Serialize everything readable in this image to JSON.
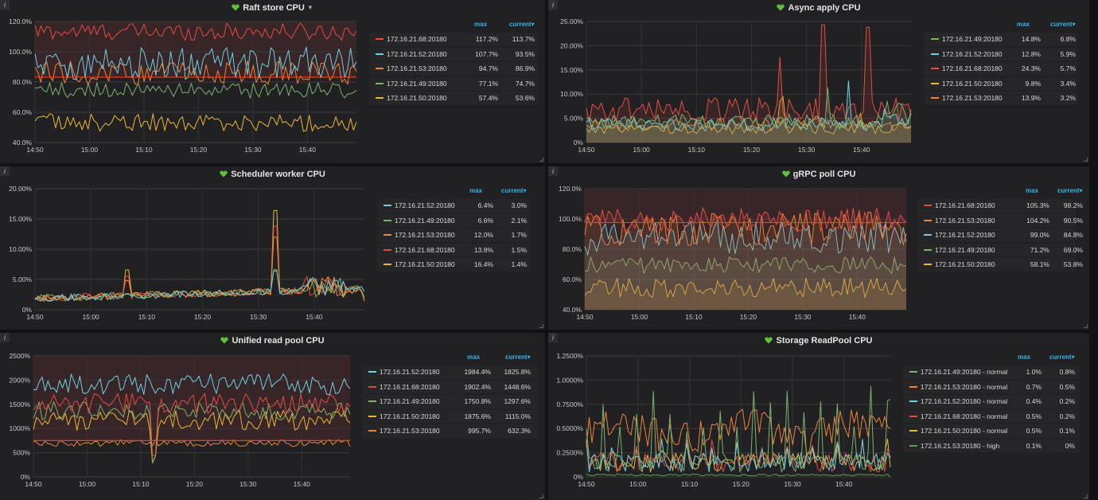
{
  "legend_headers": {
    "max": "max",
    "current": "current",
    "sort_icon": "caret-down-icon"
  },
  "panels": [
    {
      "title": "Raft store CPU",
      "has_dropdown": true,
      "y_ticks": [
        "120.0%",
        "100.0%",
        "80.0%",
        "60.0%",
        "40.0%"
      ],
      "x_ticks": [
        "14:50",
        "15:00",
        "15:10",
        "15:20",
        "15:30",
        "15:40"
      ],
      "threshold_label_value": 85,
      "series": [
        {
          "name": "172.16.21.68:20180",
          "max": "117.2%",
          "current": "113.7%",
          "color": "#e24d42"
        },
        {
          "name": "172.16.21.52:20180",
          "max": "107.7%",
          "current": "93.5%",
          "color": "#6ed0e0"
        },
        {
          "name": "172.16.21.53:20180",
          "max": "94.7%",
          "current": "86.9%",
          "color": "#ef843c"
        },
        {
          "name": "172.16.21.49:20180",
          "max": "77.1%",
          "current": "74.7%",
          "color": "#7eb26d"
        },
        {
          "name": "172.16.21.50:20180",
          "max": "57.4%",
          "current": "53.6%",
          "color": "#eab839"
        }
      ]
    },
    {
      "title": "Async apply CPU",
      "has_dropdown": false,
      "y_ticks": [
        "25.00%",
        "20.00%",
        "15.00%",
        "10.00%",
        "5.00%",
        "0%"
      ],
      "x_ticks": [
        "14:50",
        "15:00",
        "15:10",
        "15:20",
        "15:30",
        "15:40"
      ],
      "series": [
        {
          "name": "172.16.21.49:20180",
          "max": "14.8%",
          "current": "6.8%",
          "color": "#7eb26d"
        },
        {
          "name": "172.16.21.52:20180",
          "max": "12.8%",
          "current": "5.9%",
          "color": "#6ed0e0"
        },
        {
          "name": "172.16.21.68:20180",
          "max": "24.3%",
          "current": "5.7%",
          "color": "#e24d42"
        },
        {
          "name": "172.16.21.50:20180",
          "max": "9.8%",
          "current": "3.4%",
          "color": "#eab839"
        },
        {
          "name": "172.16.21.53:20180",
          "max": "13.9%",
          "current": "3.2%",
          "color": "#ef843c"
        }
      ]
    },
    {
      "title": "Scheduler worker CPU",
      "has_dropdown": false,
      "y_ticks": [
        "20.00%",
        "15.00%",
        "10.00%",
        "5.00%",
        "0%"
      ],
      "x_ticks": [
        "14:50",
        "15:00",
        "15:10",
        "15:20",
        "15:30",
        "15:40"
      ],
      "series": [
        {
          "name": "172.16.21.52:20180",
          "max": "6.4%",
          "current": "3.0%",
          "color": "#6ed0e0"
        },
        {
          "name": "172.16.21.49:20180",
          "max": "6.6%",
          "current": "2.1%",
          "color": "#7eb26d"
        },
        {
          "name": "172.16.21.53:20180",
          "max": "12.0%",
          "current": "1.7%",
          "color": "#ef843c"
        },
        {
          "name": "172.16.21.68:20180",
          "max": "13.8%",
          "current": "1.5%",
          "color": "#e24d42"
        },
        {
          "name": "172.16.21.50:20180",
          "max": "16.4%",
          "current": "1.4%",
          "color": "#eab839"
        }
      ]
    },
    {
      "title": "gRPC poll CPU",
      "has_dropdown": false,
      "y_ticks": [
        "120.0%",
        "100.0%",
        "80.0%",
        "60.0%",
        "40.0%"
      ],
      "x_ticks": [
        "14:50",
        "15:00",
        "15:10",
        "15:20",
        "15:30",
        "15:40"
      ],
      "series": [
        {
          "name": "172.16.21.68:20180",
          "max": "105.3%",
          "current": "98.2%",
          "color": "#e24d42"
        },
        {
          "name": "172.16.21.53:20180",
          "max": "104.2%",
          "current": "90.5%",
          "color": "#ef843c"
        },
        {
          "name": "172.16.21.52:20180",
          "max": "99.0%",
          "current": "84.8%",
          "color": "#6ed0e0"
        },
        {
          "name": "172.16.21.49:20180",
          "max": "71.2%",
          "current": "69.0%",
          "color": "#7eb26d"
        },
        {
          "name": "172.16.21.50:20180",
          "max": "58.1%",
          "current": "53.8%",
          "color": "#eab839"
        }
      ]
    },
    {
      "title": "Unified read pool CPU",
      "has_dropdown": false,
      "y_ticks": [
        "2500%",
        "2000%",
        "1500%",
        "1000%",
        "500%",
        "0%"
      ],
      "x_ticks": [
        "14:50",
        "15:00",
        "15:10",
        "15:20",
        "15:30",
        "15:40"
      ],
      "series": [
        {
          "name": "172.16.21.52:20180",
          "max": "1984.4%",
          "current": "1825.8%",
          "color": "#6ed0e0"
        },
        {
          "name": "172.16.21.68:20180",
          "max": "1902.4%",
          "current": "1448.6%",
          "color": "#e24d42"
        },
        {
          "name": "172.16.21.49:20180",
          "max": "1750.8%",
          "current": "1297.6%",
          "color": "#7eb26d"
        },
        {
          "name": "172.16.21.50:20180",
          "max": "1875.6%",
          "current": "1115.0%",
          "color": "#eab839"
        },
        {
          "name": "172.16.21.53:20180",
          "max": "995.7%",
          "current": "632.3%",
          "color": "#ef843c"
        }
      ]
    },
    {
      "title": "Storage ReadPool CPU",
      "has_dropdown": false,
      "y_ticks": [
        "1.2500%",
        "1.0000%",
        "0.7500%",
        "0.5000%",
        "0.2500%",
        "0%"
      ],
      "x_ticks": [
        "14:50",
        "15:00",
        "15:10",
        "15:20",
        "15:30",
        "15:40"
      ],
      "series": [
        {
          "name": "172.16.21.49:20180 - normal",
          "max": "1.0%",
          "current": "0.8%",
          "color": "#7eb26d"
        },
        {
          "name": "172.16.21.53:20180 - normal",
          "max": "0.7%",
          "current": "0.5%",
          "color": "#ef843c"
        },
        {
          "name": "172.16.21.52:20180 - normal",
          "max": "0.4%",
          "current": "0.2%",
          "color": "#6ed0e0"
        },
        {
          "name": "172.16.21.68:20180 - normal",
          "max": "0.5%",
          "current": "0.2%",
          "color": "#e24d42"
        },
        {
          "name": "172.16.21.50:20180 - normal",
          "max": "0.5%",
          "current": "0.1%",
          "color": "#eab839"
        },
        {
          "name": "172.16.21.53:20180 - high",
          "max": "0.1%",
          "current": "0%",
          "color": "#629e51"
        }
      ]
    }
  ]
}
